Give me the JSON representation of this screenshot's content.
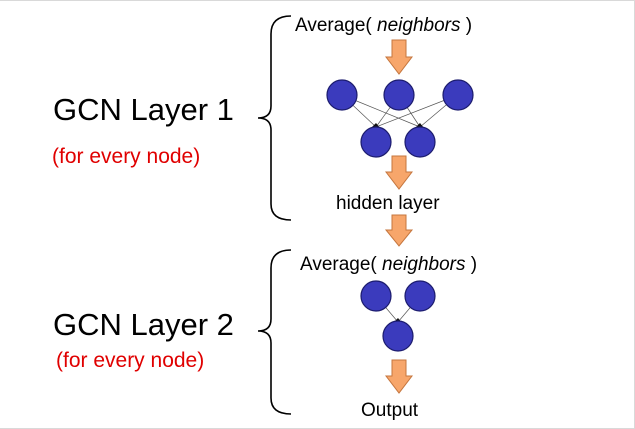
{
  "layer1": {
    "title": "GCN Layer 1",
    "subtitle": "(for every node)",
    "aggregate_prefix": "Average( ",
    "aggregate_var": "neighbors",
    "aggregate_suffix": " )",
    "output_label": "hidden layer"
  },
  "layer2": {
    "title": "GCN Layer 2",
    "subtitle": "(for every node)",
    "aggregate_prefix": "Average( ",
    "aggregate_var": "neighbors",
    "aggregate_suffix": " )",
    "output_label": "Output"
  },
  "colors": {
    "node": "#3b3bbd",
    "arrow": "#f7a66b",
    "subtitle": "#e00000"
  }
}
